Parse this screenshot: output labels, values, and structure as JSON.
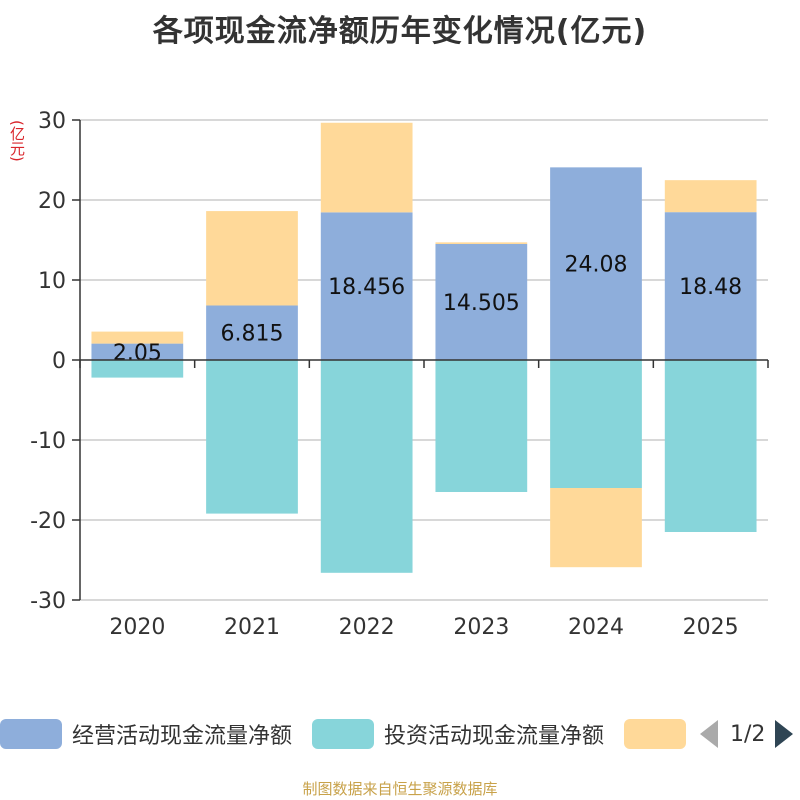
{
  "chart_data": {
    "type": "bar",
    "stacked": true,
    "title": "各项现金流净额历年变化情况(亿元)",
    "ylabel": "(亿元)",
    "ylim": [
      -30,
      30
    ],
    "yticks": [
      30,
      20,
      10,
      0,
      -10,
      -20,
      -30
    ],
    "categories": [
      "2020",
      "2021",
      "2022",
      "2023",
      "2024",
      "2025"
    ],
    "series": [
      {
        "name": "经营活动现金流量净额",
        "color": "#8eaedb",
        "values": [
          2.05,
          6.815,
          18.456,
          14.505,
          24.08,
          18.48
        ]
      },
      {
        "name": "投资活动现金流量净额",
        "color": "#87d5da",
        "values": [
          -2.2,
          -19.2,
          -26.6,
          -16.5,
          -16.0,
          -21.5
        ]
      },
      {
        "name": "",
        "color": "#ffd999",
        "values": [
          1.5,
          11.8,
          11.2,
          0.2,
          -9.9,
          4.0
        ]
      }
    ],
    "data_labels": [
      "2.05",
      "6.815",
      "18.456",
      "14.505",
      "24.08",
      "18.48"
    ]
  },
  "legend": {
    "items": [
      {
        "label": "经营活动现金流量净额",
        "color": "#8eaedb"
      },
      {
        "label": "投资活动现金流量净额",
        "color": "#87d5da"
      },
      {
        "label": "",
        "color": "#ffd999"
      }
    ],
    "pager": "1/2"
  },
  "source": "制图数据来自恒生聚源数据库"
}
